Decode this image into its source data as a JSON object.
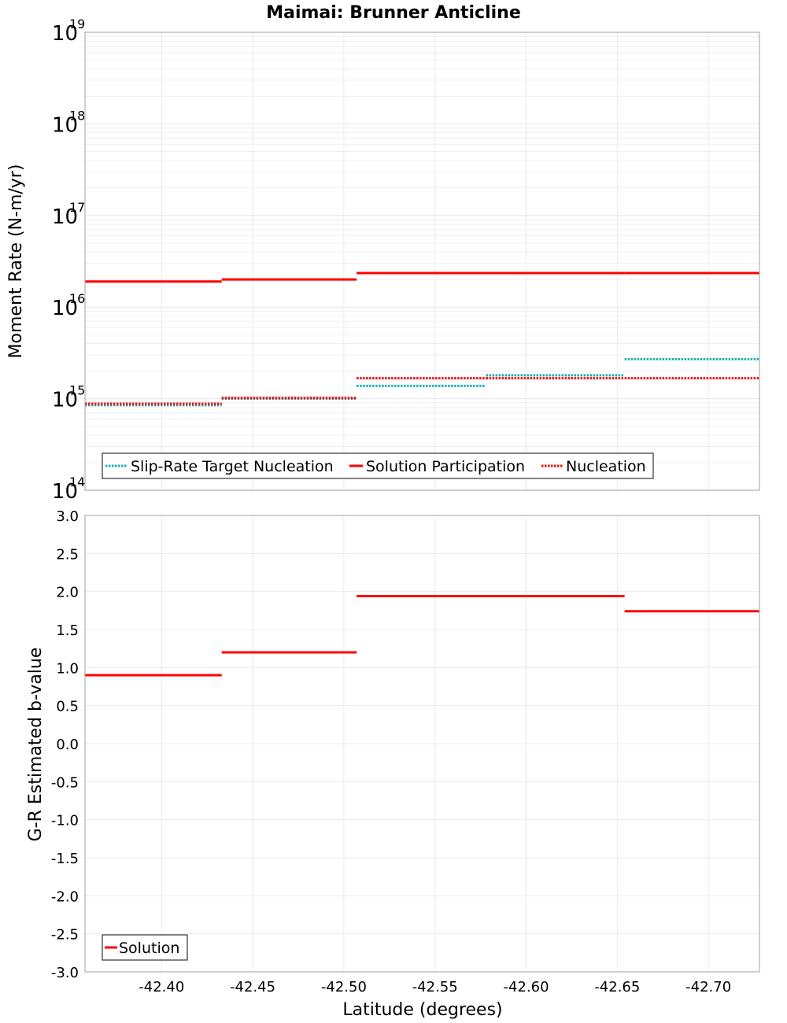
{
  "chart_data": [
    {
      "type": "line",
      "title": "Maimai: Brunner Anticline",
      "xlabel": "Latitude (degrees)",
      "ylabel": "Moment Rate (N-m/yr)",
      "yscale": "log",
      "ylim_exponent": [
        14,
        19
      ],
      "ytick_base": "10",
      "ytick_exponents": [
        "14",
        "15",
        "16",
        "17",
        "18",
        "19"
      ],
      "xlim": [
        -42.358,
        -42.728
      ],
      "xticks": [
        -42.4,
        -42.45,
        -42.5,
        -42.55,
        -42.6,
        -42.65,
        -42.7
      ],
      "xtick_labels": [
        "-42.40",
        "-42.45",
        "-42.50",
        "-42.55",
        "-42.60",
        "-42.65",
        "-42.70"
      ],
      "grid": true,
      "legend_position": "bottom-left",
      "series": [
        {
          "name": "Slip-Rate Target Nucleation",
          "style": "dotted",
          "color": "#18b2b2",
          "segments": [
            {
              "x": [
                -42.358,
                -42.433
              ],
              "y": 850000000000000.0
            },
            {
              "x": [
                -42.433,
                -42.507
              ],
              "y": 1000000000000000.0
            },
            {
              "x": [
                -42.507,
                -42.578
              ],
              "y": 1380000000000000.0
            },
            {
              "x": [
                -42.578,
                -42.654
              ],
              "y": 1800000000000000.0
            },
            {
              "x": [
                -42.654,
                -42.728
              ],
              "y": 2700000000000000.0
            }
          ]
        },
        {
          "name": "Solution Participation",
          "style": "solid",
          "color": "#ff0000",
          "segments": [
            {
              "x": [
                -42.358,
                -42.433
              ],
              "y": 1.9e+16
            },
            {
              "x": [
                -42.433,
                -42.507
              ],
              "y": 2e+16
            },
            {
              "x": [
                -42.507,
                -42.578
              ],
              "y": 2.35e+16
            },
            {
              "x": [
                -42.578,
                -42.654
              ],
              "y": 2.35e+16
            },
            {
              "x": [
                -42.654,
                -42.728
              ],
              "y": 2.35e+16
            }
          ]
        },
        {
          "name": "Nucleation",
          "style": "dotted",
          "color": "#ff0000",
          "segments": [
            {
              "x": [
                -42.358,
                -42.433
              ],
              "y": 880000000000000.0
            },
            {
              "x": [
                -42.433,
                -42.507
              ],
              "y": 1020000000000000.0
            },
            {
              "x": [
                -42.507,
                -42.578
              ],
              "y": 1670000000000000.0
            },
            {
              "x": [
                -42.578,
                -42.654
              ],
              "y": 1670000000000000.0
            },
            {
              "x": [
                -42.654,
                -42.728
              ],
              "y": 1670000000000000.0
            }
          ]
        }
      ]
    },
    {
      "type": "line",
      "xlabel": "Latitude (degrees)",
      "ylabel": "G-R Estimated b-value",
      "ylim": [
        -3.0,
        3.0
      ],
      "yticks": [
        -3.0,
        -2.5,
        -2.0,
        -1.5,
        -1.0,
        -0.5,
        0.0,
        0.5,
        1.0,
        1.5,
        2.0,
        2.5,
        3.0
      ],
      "ytick_labels": [
        "-3.0",
        "-2.5",
        "-2.0",
        "-1.5",
        "-1.0",
        "-0.5",
        "0.0",
        "0.5",
        "1.0",
        "1.5",
        "2.0",
        "2.5",
        "3.0"
      ],
      "xlim": [
        -42.358,
        -42.728
      ],
      "xticks": [
        -42.4,
        -42.45,
        -42.5,
        -42.55,
        -42.6,
        -42.65,
        -42.7
      ],
      "xtick_labels": [
        "-42.40",
        "-42.45",
        "-42.50",
        "-42.55",
        "-42.60",
        "-42.65",
        "-42.70"
      ],
      "grid": true,
      "legend_position": "bottom-left",
      "series": [
        {
          "name": "Solution",
          "style": "solid",
          "color": "#ff0000",
          "segments": [
            {
              "x": [
                -42.358,
                -42.433
              ],
              "y": 0.9
            },
            {
              "x": [
                -42.433,
                -42.507
              ],
              "y": 1.2
            },
            {
              "x": [
                -42.507,
                -42.578
              ],
              "y": 1.94
            },
            {
              "x": [
                -42.578,
                -42.654
              ],
              "y": 1.94
            },
            {
              "x": [
                -42.654,
                -42.728
              ],
              "y": 1.74
            }
          ]
        }
      ]
    }
  ]
}
